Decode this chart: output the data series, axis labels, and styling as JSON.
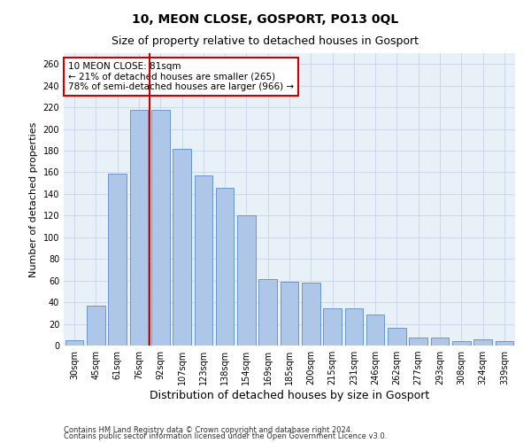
{
  "title": "10, MEON CLOSE, GOSPORT, PO13 0QL",
  "subtitle": "Size of property relative to detached houses in Gosport",
  "xlabel": "Distribution of detached houses by size in Gosport",
  "ylabel": "Number of detached properties",
  "bar_labels": [
    "30sqm",
    "45sqm",
    "61sqm",
    "76sqm",
    "92sqm",
    "107sqm",
    "123sqm",
    "138sqm",
    "154sqm",
    "169sqm",
    "185sqm",
    "200sqm",
    "215sqm",
    "231sqm",
    "246sqm",
    "262sqm",
    "277sqm",
    "293sqm",
    "308sqm",
    "324sqm",
    "339sqm"
  ],
  "bar_heights": [
    5,
    37,
    159,
    218,
    218,
    182,
    157,
    146,
    120,
    61,
    59,
    58,
    34,
    34,
    29,
    16,
    7,
    7,
    4,
    6,
    4
  ],
  "bar_color": "#aec6e8",
  "bar_edge_color": "#5b8cc8",
  "vline_x_index": 3,
  "vline_color": "#cc0000",
  "annotation_text": "10 MEON CLOSE: 81sqm\n← 21% of detached houses are smaller (265)\n78% of semi-detached houses are larger (966) →",
  "annotation_box_color": "#ffffff",
  "annotation_box_edge": "#cc0000",
  "ylim": [
    0,
    270
  ],
  "yticks": [
    0,
    20,
    40,
    60,
    80,
    100,
    120,
    140,
    160,
    180,
    200,
    220,
    240,
    260
  ],
  "footer1": "Contains HM Land Registry data © Crown copyright and database right 2024.",
  "footer2": "Contains public sector information licensed under the Open Government Licence v3.0.",
  "bg_color": "#ffffff",
  "plot_bg_color": "#e8f0f8",
  "grid_color": "#c8d4e8",
  "title_fontsize": 10,
  "subtitle_fontsize": 9,
  "xlabel_fontsize": 9,
  "ylabel_fontsize": 8,
  "tick_fontsize": 7,
  "annotation_fontsize": 7.5,
  "footer_fontsize": 6
}
